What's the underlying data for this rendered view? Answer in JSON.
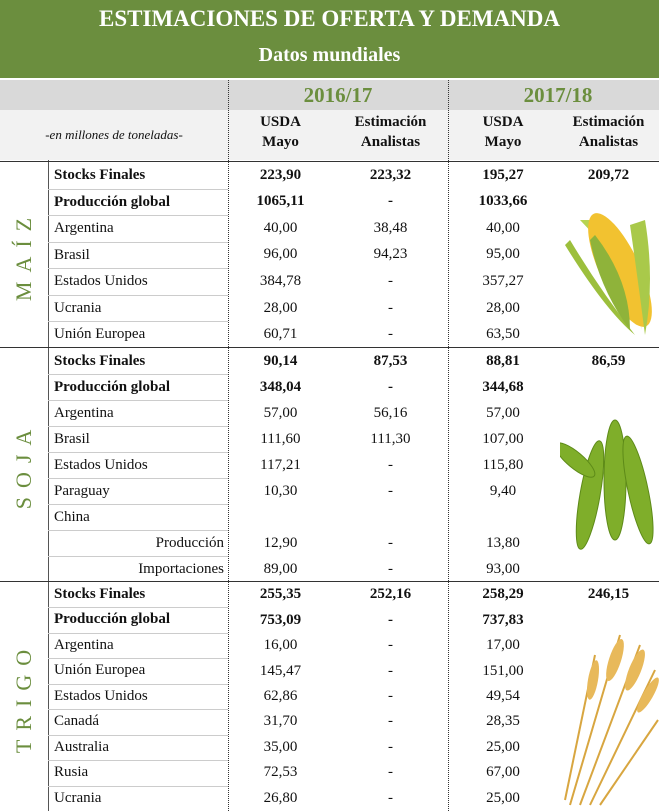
{
  "header": {
    "title": "ESTIMACIONES DE OFERTA Y DEMANDA",
    "subtitle": "Datos mundiales"
  },
  "years": [
    "2016/17",
    "2017/18"
  ],
  "columns": {
    "unit": "-en millones de toneladas-",
    "heads": [
      [
        "USDA",
        "Mayo"
      ],
      [
        "Estimación",
        "Analistas"
      ],
      [
        "USDA",
        "Mayo"
      ],
      [
        "Estimación",
        "Analistas"
      ]
    ]
  },
  "sections": [
    {
      "name": "MAÍZ",
      "rows": [
        {
          "label": "Stocks Finales",
          "values": [
            "223,90",
            "223,32",
            "195,27",
            "209,72"
          ]
        },
        {
          "label": "Producción global",
          "values": [
            "1065,11",
            "-",
            "1033,66"
          ]
        },
        {
          "label": "Argentina",
          "values": [
            "40,00",
            "38,48",
            "40,00"
          ]
        },
        {
          "label": "Brasil",
          "values": [
            "96,00",
            "94,23",
            "95,00"
          ]
        },
        {
          "label": "Estados Unidos",
          "values": [
            "384,78",
            "-",
            "357,27"
          ]
        },
        {
          "label": "Ucrania",
          "values": [
            "28,00",
            "-",
            "28,00"
          ]
        },
        {
          "label": "Unión Europea",
          "values": [
            "60,71",
            "-",
            "63,50"
          ]
        }
      ]
    },
    {
      "name": "SOJA",
      "rows": [
        {
          "label": "Stocks Finales",
          "values": [
            "90,14",
            "87,53",
            "88,81",
            "86,59"
          ]
        },
        {
          "label": "Producción global",
          "values": [
            "348,04",
            "-",
            "344,68"
          ]
        },
        {
          "label": "Argentina",
          "values": [
            "57,00",
            "56,16",
            "57,00"
          ]
        },
        {
          "label": "Brasil",
          "values": [
            "111,60",
            "111,30",
            "107,00"
          ]
        },
        {
          "label": "Estados Unidos",
          "values": [
            "117,21",
            "-",
            "115,80"
          ]
        },
        {
          "label": "Paraguay",
          "values": [
            "10,30",
            "-",
            "9,40"
          ]
        },
        {
          "label": "China",
          "items": [
            {
              "label": "Producción",
              "values": [
                "12,90",
                "-",
                "13,80"
              ]
            },
            {
              "label": "Importaciones",
              "values": [
                "89,00",
                "-",
                "93,00"
              ]
            }
          ]
        }
      ]
    },
    {
      "name": "TRIGO",
      "rows": [
        {
          "label": "Stocks Finales",
          "values": [
            "255,35",
            "252,16",
            "258,29",
            "246,15"
          ]
        },
        {
          "label": "Producción global",
          "values": [
            "753,09",
            "-",
            "737,83"
          ]
        },
        {
          "label": "Argentina",
          "values": [
            "16,00",
            "-",
            "17,00"
          ]
        },
        {
          "label": "Unión Europea",
          "values": [
            "145,47",
            "-",
            "151,00"
          ]
        },
        {
          "label": "Estados Unidos",
          "values": [
            "62,86",
            "-",
            "49,54"
          ]
        },
        {
          "label": "Canadá",
          "values": [
            "31,70",
            "-",
            "28,35"
          ]
        },
        {
          "label": "Australia",
          "values": [
            "35,00",
            "-",
            "25,00"
          ]
        },
        {
          "label": "Rusia",
          "values": [
            "72,53",
            "-",
            "67,00"
          ]
        },
        {
          "label": "Ucrania",
          "values": [
            "26,80",
            "-",
            "25,00"
          ]
        }
      ]
    }
  ]
}
